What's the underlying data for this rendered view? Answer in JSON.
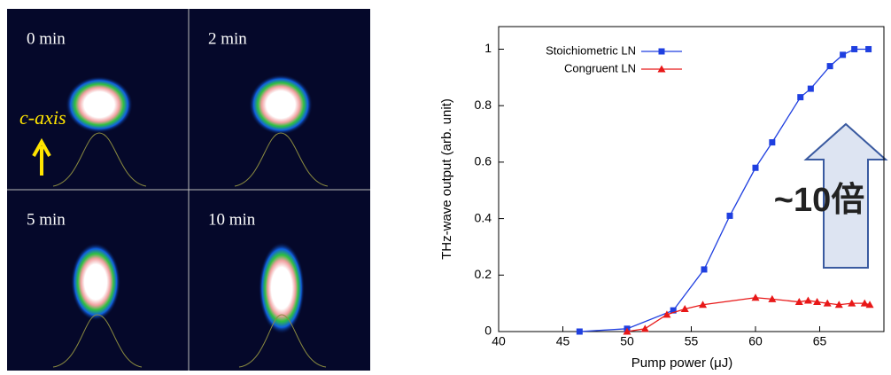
{
  "panels": [
    {
      "label": "0 min"
    },
    {
      "label": "2 min"
    },
    {
      "label": "5 min"
    },
    {
      "label": "10 min"
    }
  ],
  "axis_label": "c-axis",
  "chart_data": {
    "type": "line",
    "xlabel": "Pump power (μJ)",
    "ylabel": "THz-wave output (arb. unit)",
    "xlim": [
      40,
      70
    ],
    "xticks": [
      40,
      45,
      50,
      55,
      60,
      65
    ],
    "ylim": [
      0,
      1.08
    ],
    "yticks": [
      0,
      0.2,
      0.4,
      0.6,
      0.8,
      1
    ],
    "legend": "upper left",
    "annotation": "~10倍",
    "series": [
      {
        "name": "Stoichiometric LN",
        "color": "#1f3fe0",
        "marker": "square",
        "x": [
          46.3,
          50,
          53.6,
          56,
          58,
          60,
          61.3,
          63.5,
          64.3,
          65.8,
          66.8,
          67.7,
          68.8
        ],
        "values": [
          0,
          0.01,
          0.075,
          0.22,
          0.41,
          0.58,
          0.67,
          0.83,
          0.86,
          0.94,
          0.98,
          1.0,
          1.0
        ]
      },
      {
        "name": "Congruent LN",
        "color": "#e81818",
        "marker": "triangle",
        "x": [
          50,
          51.4,
          53.1,
          54.5,
          55.9,
          60,
          61.3,
          63.4,
          64.1,
          64.8,
          65.6,
          66.5,
          67.5,
          68.5,
          68.9
        ],
        "values": [
          0,
          0.01,
          0.06,
          0.08,
          0.095,
          0.12,
          0.115,
          0.105,
          0.11,
          0.105,
          0.1,
          0.095,
          0.1,
          0.1,
          0.095
        ]
      }
    ]
  }
}
